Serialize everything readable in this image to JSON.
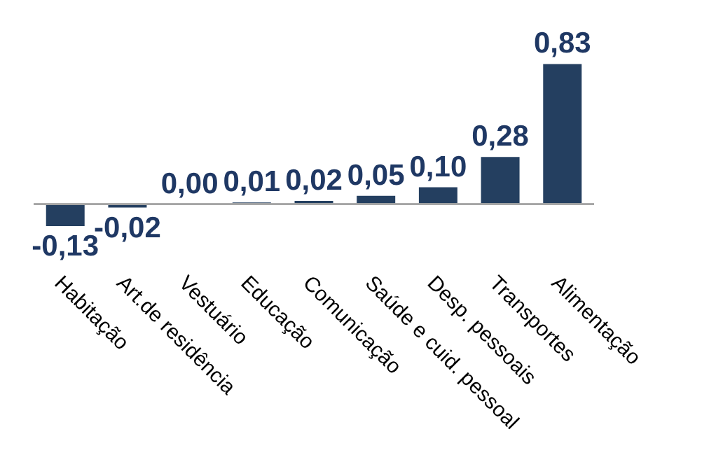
{
  "chart_data": {
    "type": "bar",
    "categories": [
      "Habitação",
      "Art.de residência",
      "Vestuário",
      "Educação",
      "Comunicação",
      "Saúde e cuid. pessoal",
      "Desp. pessoais",
      "Transportes",
      "Alimentação"
    ],
    "values": [
      -0.13,
      -0.02,
      0.0,
      0.01,
      0.02,
      0.05,
      0.1,
      0.28,
      0.83
    ],
    "value_labels": [
      "-0,13",
      "-0,02",
      "0,00",
      "0,01",
      "0,02",
      "0,05",
      "0,10",
      "0,28",
      "0,83"
    ],
    "color": "#243f60"
  }
}
